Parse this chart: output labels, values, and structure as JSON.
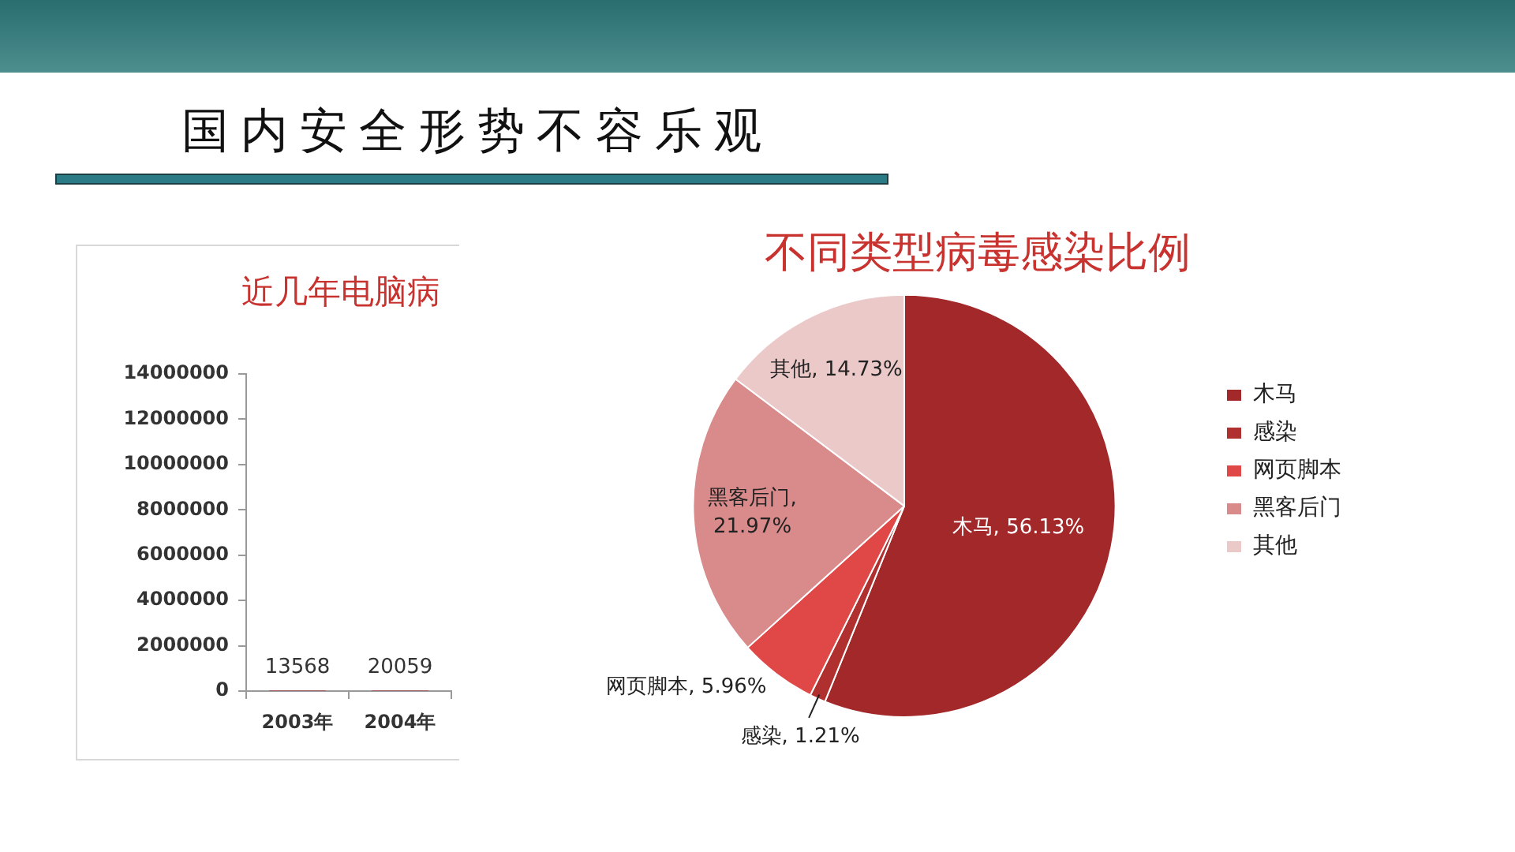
{
  "chart_data": [
    {
      "type": "other",
      "title": "国内安全形势不容乐观"
    },
    {
      "type": "bar",
      "title": "近几年电脑病",
      "categories": [
        "2003年",
        "2004年"
      ],
      "values": [
        13568,
        20059
      ],
      "color": "#a51c1c",
      "ylim": [
        0,
        14000000
      ],
      "yticks": [
        0,
        2000000,
        4000000,
        6000000,
        8000000,
        10000000,
        12000000,
        14000000
      ],
      "data_labels": true
    },
    {
      "type": "pie",
      "title": "不同类型病毒感染比例",
      "categories": [
        "木马",
        "感染",
        "网页脚本",
        "黑客后门",
        "其他"
      ],
      "values": [
        56.13,
        1.21,
        5.96,
        21.97,
        14.73
      ],
      "colors": [
        "#a3282a",
        "#b03030",
        "#e04848",
        "#d98a8a",
        "#ebc9c9"
      ],
      "value_labels": [
        "木马, 56.13%",
        "感染, 1.21%",
        "网页脚本, 5.96%",
        "黑客后门, 21.97%",
        "其他, 14.73%"
      ],
      "legend": "right"
    }
  ]
}
